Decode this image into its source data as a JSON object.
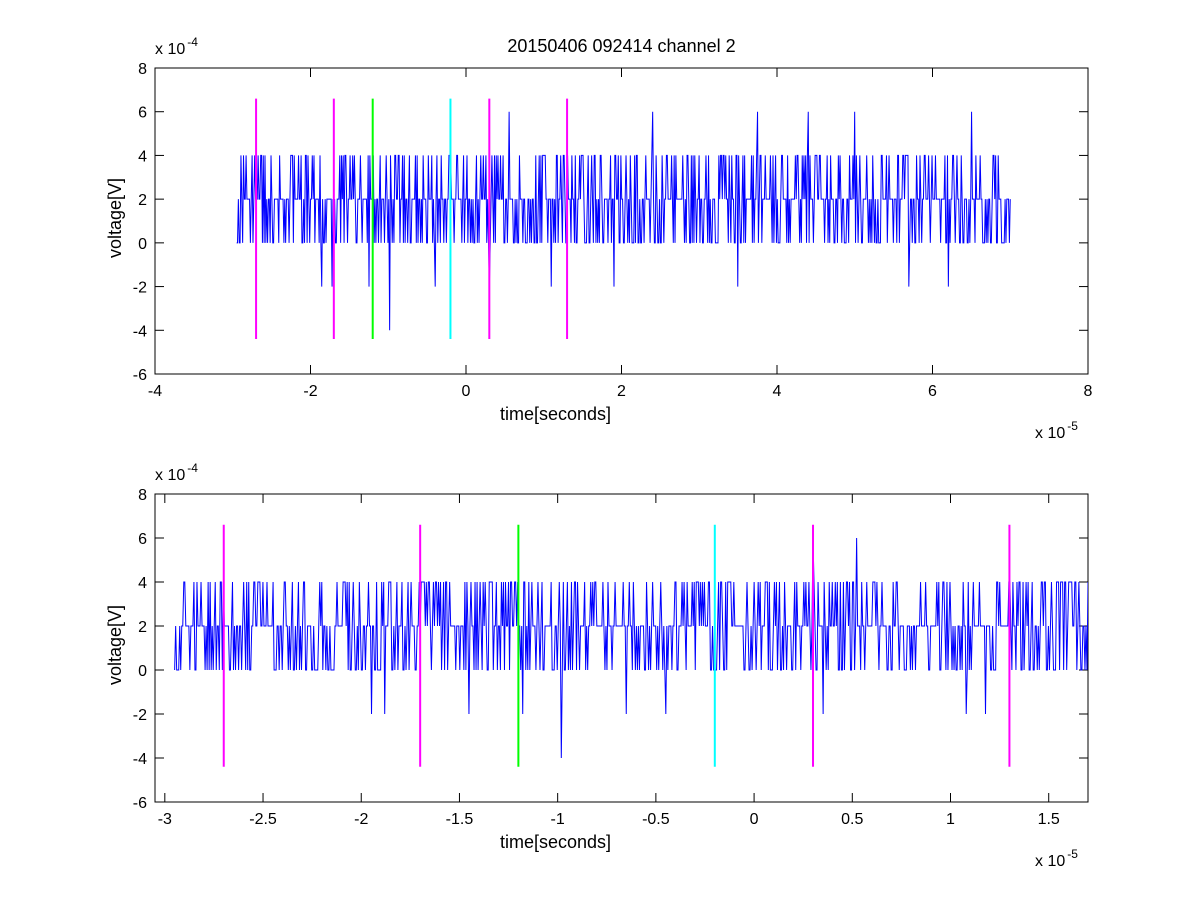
{
  "chart_data": [
    {
      "type": "line",
      "title": "20150406 092414 channel 2",
      "xlabel": "time[seconds]",
      "ylabel": "voltage[V]",
      "x_exponent_label": "x 10",
      "x_exponent": "-5",
      "y_exponent_label": "x 10",
      "y_exponent": "-4",
      "xlim": [
        -4,
        8
      ],
      "ylim": [
        -6,
        8
      ],
      "x_ticks": [
        -4,
        -2,
        0,
        2,
        4,
        6,
        8
      ],
      "x_tick_labels": [
        "-4",
        "-2",
        "0",
        "2",
        "4",
        "6",
        "8"
      ],
      "y_ticks": [
        -6,
        -4,
        -2,
        0,
        2,
        4,
        6,
        8
      ],
      "y_tick_labels": [
        "-6",
        "-4",
        "-2",
        "0",
        "2",
        "4",
        "6",
        "8"
      ],
      "grid": false,
      "signal": {
        "color": "#0000ff",
        "x_start": -2.95,
        "x_end": 7.0,
        "seed": 20150406,
        "spikes": [
          {
            "x": -2.9,
            "y": 4
          },
          {
            "x": -2.75,
            "y": 4
          },
          {
            "x": -2.5,
            "y": 2
          },
          {
            "x": -1.85,
            "y": -2
          },
          {
            "x": -1.72,
            "y": -2
          },
          {
            "x": -1.6,
            "y": 4
          },
          {
            "x": -1.25,
            "y": -2
          },
          {
            "x": -1.1,
            "y": 4
          },
          {
            "x": -0.98,
            "y": -4
          },
          {
            "x": -0.4,
            "y": -2
          },
          {
            "x": -0.2,
            "y": 4
          },
          {
            "x": 0.3,
            "y": -2
          },
          {
            "x": 0.55,
            "y": 6
          },
          {
            "x": 1.1,
            "y": -2
          },
          {
            "x": 1.25,
            "y": 4
          },
          {
            "x": 1.9,
            "y": -2
          },
          {
            "x": 2.4,
            "y": 6
          },
          {
            "x": 3.5,
            "y": -2
          },
          {
            "x": 3.75,
            "y": 6
          },
          {
            "x": 4.4,
            "y": 6
          },
          {
            "x": 5.0,
            "y": 6
          },
          {
            "x": 5.7,
            "y": -2
          },
          {
            "x": 6.2,
            "y": -2
          },
          {
            "x": 6.5,
            "y": 6
          }
        ]
      },
      "markers": [
        {
          "x": -2.7,
          "color": "#ff00ff",
          "y_from": -4.4,
          "y_to": 6.6
        },
        {
          "x": -1.7,
          "color": "#ff00ff",
          "y_from": -4.4,
          "y_to": 6.6
        },
        {
          "x": -1.2,
          "color": "#00ff00",
          "y_from": -4.4,
          "y_to": 6.6
        },
        {
          "x": -0.2,
          "color": "#00ffff",
          "y_from": -4.4,
          "y_to": 6.6
        },
        {
          "x": 0.3,
          "color": "#ff00ff",
          "y_from": -4.4,
          "y_to": 6.6
        },
        {
          "x": 1.3,
          "color": "#ff00ff",
          "y_from": -4.4,
          "y_to": 6.6
        }
      ]
    },
    {
      "type": "line",
      "title": "",
      "xlabel": "time[seconds]",
      "ylabel": "voltage[V]",
      "x_exponent_label": "x 10",
      "x_exponent": "-5",
      "y_exponent_label": "x 10",
      "y_exponent": "-4",
      "xlim": [
        -3.05,
        1.7
      ],
      "ylim": [
        -6,
        8
      ],
      "x_ticks": [
        -3,
        -2.5,
        -2,
        -1.5,
        -1,
        -0.5,
        0,
        0.5,
        1,
        1.5
      ],
      "x_tick_labels": [
        "-3",
        "-2.5",
        "-2",
        "-1.5",
        "-1",
        "-0.5",
        "0",
        "0.5",
        "1",
        "1.5"
      ],
      "y_ticks": [
        -6,
        -4,
        -2,
        0,
        2,
        4,
        6,
        8
      ],
      "y_tick_labels": [
        "-6",
        "-4",
        "-2",
        "0",
        "2",
        "4",
        "6",
        "8"
      ],
      "grid": false,
      "signal": {
        "color": "#0000ff",
        "x_start": -2.95,
        "x_end": 1.7,
        "seed": 92414,
        "spikes": [
          {
            "x": -2.9,
            "y": 4
          },
          {
            "x": -2.85,
            "y": 4
          },
          {
            "x": -2.6,
            "y": 4
          },
          {
            "x": -2.45,
            "y": 4
          },
          {
            "x": -1.95,
            "y": -2
          },
          {
            "x": -1.88,
            "y": -2
          },
          {
            "x": -1.82,
            "y": 4
          },
          {
            "x": -1.45,
            "y": -2
          },
          {
            "x": -1.35,
            "y": 4
          },
          {
            "x": -1.18,
            "y": -2
          },
          {
            "x": -0.98,
            "y": -4
          },
          {
            "x": -0.95,
            "y": 4
          },
          {
            "x": -0.65,
            "y": -2
          },
          {
            "x": -0.55,
            "y": 4
          },
          {
            "x": -0.45,
            "y": -2
          },
          {
            "x": 0.3,
            "y": 6
          },
          {
            "x": 0.52,
            "y": 6
          },
          {
            "x": 0.35,
            "y": -2
          },
          {
            "x": 1.08,
            "y": -2
          },
          {
            "x": 1.18,
            "y": -2
          },
          {
            "x": 1.25,
            "y": 4
          },
          {
            "x": 1.35,
            "y": 4
          },
          {
            "x": 1.55,
            "y": 4
          }
        ]
      },
      "markers": [
        {
          "x": -2.7,
          "color": "#ff00ff",
          "y_from": -4.4,
          "y_to": 6.6
        },
        {
          "x": -1.7,
          "color": "#ff00ff",
          "y_from": -4.4,
          "y_to": 6.6
        },
        {
          "x": -1.2,
          "color": "#00ff00",
          "y_from": -4.4,
          "y_to": 6.6
        },
        {
          "x": -0.2,
          "color": "#00ffff",
          "y_from": -4.4,
          "y_to": 6.6
        },
        {
          "x": 0.3,
          "color": "#ff00ff",
          "y_from": -4.4,
          "y_to": 6.6
        },
        {
          "x": 1.3,
          "color": "#ff00ff",
          "y_from": -4.4,
          "y_to": 6.6
        }
      ]
    }
  ]
}
